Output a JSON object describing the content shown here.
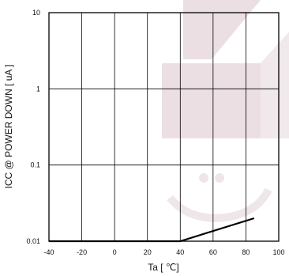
{
  "chart_data": {
    "type": "line",
    "title": "",
    "xlabel": "Ta [ ℃]",
    "ylabel": "ICC @ POWER DOWN [ uA ]",
    "xlim": [
      -40,
      100
    ],
    "ylim": [
      0.01,
      10
    ],
    "y_scale": "log",
    "grid": true,
    "x_ticks": [
      "-40",
      "-20",
      "0",
      "20",
      "40",
      "60",
      "80",
      "100"
    ],
    "x_tick_values": [
      -40,
      -20,
      0,
      20,
      40,
      60,
      80,
      100
    ],
    "y_ticks": [
      "0.01",
      "0.1",
      "1",
      "10"
    ],
    "y_tick_values": [
      0.01,
      0.1,
      1,
      10
    ],
    "series": [
      {
        "x": [
          -40,
          40,
          85
        ],
        "y": [
          0.01,
          0.01,
          0.02
        ]
      }
    ],
    "colors": {
      "series": "#000000",
      "grid": "#000000",
      "watermark": "#d9c2cb"
    }
  }
}
